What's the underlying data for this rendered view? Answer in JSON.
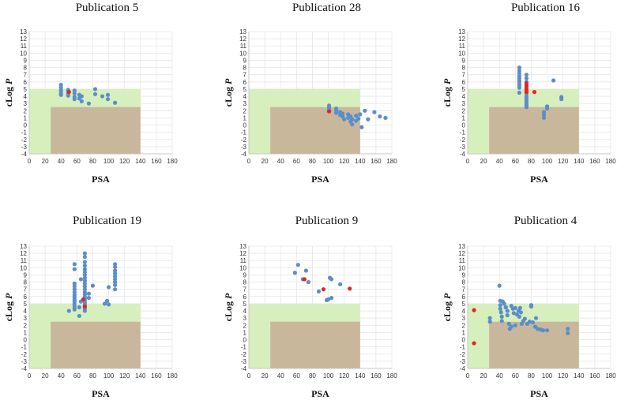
{
  "colors": {
    "green_region": "#d6efbd",
    "tan_region": "#c9b79b",
    "points": "#5b8ec9",
    "highlight": "#e8231f"
  },
  "chart_data": [
    {
      "type": "scatter",
      "title": "Publication 5",
      "xlabel": "PSA",
      "ylabel": "cLog P",
      "xlim": [
        0,
        180
      ],
      "ylim": [
        -4,
        13
      ],
      "x_ticks": [
        0,
        20,
        40,
        60,
        80,
        100,
        120,
        140,
        160,
        180
      ],
      "y_ticks": [
        -4,
        -3,
        -2,
        -1,
        0,
        1,
        2,
        3,
        4,
        5,
        6,
        7,
        8,
        9,
        10,
        11,
        12,
        13
      ],
      "regions": [
        {
          "name": "green",
          "x": [
            0,
            140
          ],
          "y": [
            -4,
            5
          ]
        },
        {
          "name": "tan",
          "x": [
            27,
            140
          ],
          "y": [
            -4,
            2.5
          ]
        }
      ],
      "series": [
        {
          "name": "compounds",
          "x": [
            40,
            40,
            40,
            40,
            40,
            49,
            49,
            49,
            49,
            57,
            57,
            57,
            57,
            63,
            63,
            66,
            66,
            75,
            83,
            83,
            92,
            99,
            99,
            108
          ],
          "y": [
            5.6,
            5.2,
            4.8,
            4.4,
            4.2,
            4.9,
            4.6,
            4.3,
            4.1,
            4.8,
            4.4,
            3.9,
            3.6,
            4.2,
            3.7,
            4.0,
            3.3,
            3.0,
            5.0,
            4.3,
            4.0,
            4.2,
            3.6,
            3.1
          ]
        },
        {
          "name": "highlight",
          "x": [
            50
          ],
          "y": [
            4.6
          ]
        }
      ]
    },
    {
      "type": "scatter",
      "title": "Publication 28",
      "xlabel": "PSA",
      "ylabel": "cLog P",
      "xlim": [
        0,
        180
      ],
      "ylim": [
        -4,
        13
      ],
      "x_ticks": [
        0,
        20,
        40,
        60,
        80,
        100,
        120,
        140,
        160,
        180
      ],
      "y_ticks": [
        -4,
        -3,
        -2,
        -1,
        0,
        1,
        2,
        3,
        4,
        5,
        6,
        7,
        8,
        9,
        10,
        11,
        12,
        13
      ],
      "regions": [
        {
          "name": "green",
          "x": [
            0,
            140
          ],
          "y": [
            -4,
            5
          ]
        },
        {
          "name": "tan",
          "x": [
            27,
            140
          ],
          "y": [
            -4,
            2.5
          ]
        }
      ],
      "series": [
        {
          "name": "compounds",
          "x": [
            101,
            101,
            101,
            110,
            110,
            110,
            115,
            115,
            118,
            118,
            120,
            125,
            125,
            128,
            128,
            130,
            130,
            135,
            135,
            138,
            140,
            142,
            146,
            150,
            158,
            165,
            172
          ],
          "y": [
            2.7,
            2.4,
            2.1,
            2.3,
            2.0,
            1.7,
            1.8,
            1.4,
            1.6,
            1.2,
            0.8,
            1.5,
            1.0,
            1.2,
            0.5,
            0.8,
            0.1,
            1.3,
            0.6,
            0.9,
            1.5,
            -0.3,
            2.0,
            0.8,
            1.8,
            1.2,
            1.0
          ]
        },
        {
          "name": "highlight",
          "x": [
            101
          ],
          "y": [
            1.9
          ]
        }
      ]
    },
    {
      "type": "scatter",
      "title": "Publication 16",
      "xlabel": "PSA",
      "ylabel": "cLog P",
      "xlim": [
        0,
        180
      ],
      "ylim": [
        -4,
        13
      ],
      "x_ticks": [
        0,
        20,
        40,
        60,
        80,
        100,
        120,
        140,
        160,
        180
      ],
      "y_ticks": [
        -4,
        -3,
        -2,
        -1,
        0,
        1,
        2,
        3,
        4,
        5,
        6,
        7,
        8,
        9,
        10,
        11,
        12,
        13
      ],
      "regions": [
        {
          "name": "green",
          "x": [
            0,
            140
          ],
          "y": [
            -4,
            5
          ]
        },
        {
          "name": "tan",
          "x": [
            27,
            140
          ],
          "y": [
            -4,
            2.5
          ]
        }
      ],
      "series": [
        {
          "name": "compounds",
          "x": [
            65,
            65,
            65,
            65,
            65,
            65,
            65,
            65,
            65,
            65,
            65,
            74,
            74,
            74,
            74,
            74,
            74,
            74,
            74,
            74,
            74,
            74,
            74,
            74,
            74,
            96,
            96,
            96,
            100,
            100,
            108,
            118,
            118
          ],
          "y": [
            8.0,
            7.6,
            7.2,
            6.8,
            6.5,
            6.2,
            6.0,
            5.7,
            5.5,
            5.2,
            4.5,
            7.0,
            6.5,
            6.0,
            5.6,
            5.2,
            4.8,
            4.4,
            4.0,
            3.7,
            3.4,
            3.1,
            2.9,
            2.7,
            2.5,
            1.8,
            1.4,
            1.0,
            2.3,
            2.6,
            6.2,
            3.9,
            3.6
          ]
        },
        {
          "name": "highlight",
          "x": [
            74,
            74,
            74,
            74,
            84
          ],
          "y": [
            5.8,
            5.4,
            5.0,
            4.6,
            4.6
          ]
        }
      ]
    },
    {
      "type": "scatter",
      "title": "Publication 19",
      "xlabel": "PSA",
      "ylabel": "cLog P",
      "xlim": [
        0,
        180
      ],
      "ylim": [
        -4,
        13
      ],
      "x_ticks": [
        0,
        20,
        40,
        60,
        80,
        100,
        120,
        140,
        160,
        180
      ],
      "y_ticks": [
        -4,
        -3,
        -2,
        -1,
        0,
        1,
        2,
        3,
        4,
        5,
        6,
        7,
        8,
        9,
        10,
        11,
        12,
        13
      ],
      "regions": [
        {
          "name": "green",
          "x": [
            0,
            140
          ],
          "y": [
            -4,
            5
          ]
        },
        {
          "name": "tan",
          "x": [
            27,
            140
          ],
          "y": [
            -4,
            2.5
          ]
        }
      ],
      "series": [
        {
          "name": "compounds",
          "x": [
            50,
            57,
            57,
            57,
            57,
            57,
            57,
            57,
            57,
            57,
            57,
            57,
            57,
            57,
            57,
            63,
            63,
            65,
            65,
            70,
            70,
            70,
            70,
            70,
            70,
            70,
            70,
            70,
            70,
            70,
            70,
            70,
            70,
            70,
            70,
            70,
            70,
            70,
            70,
            70,
            70,
            75,
            75,
            80,
            95,
            98,
            100,
            100,
            108,
            108,
            108,
            108,
            108,
            108,
            108,
            108,
            108
          ],
          "y": [
            4.0,
            10.5,
            9.8,
            7.8,
            7.4,
            7.0,
            6.6,
            6.2,
            5.9,
            5.6,
            5.3,
            5.0,
            4.7,
            4.4,
            4.2,
            3.3,
            4.5,
            8.4,
            5.3,
            12.0,
            11.5,
            10.8,
            10.3,
            9.8,
            9.4,
            9.0,
            8.6,
            8.2,
            7.8,
            7.4,
            7.0,
            6.6,
            6.3,
            6.0,
            5.7,
            5.4,
            5.1,
            4.8,
            4.6,
            4.3,
            4.0,
            5.8,
            6.4,
            7.5,
            5.0,
            5.4,
            7.3,
            4.9,
            10.5,
            10.1,
            9.6,
            9.2,
            8.8,
            8.4,
            8.0,
            7.6,
            7.0
          ]
        },
        {
          "name": "highlight",
          "x": [
            68,
            70
          ],
          "y": [
            5.6,
            4.6
          ]
        }
      ]
    },
    {
      "type": "scatter",
      "title": "Publication 9",
      "xlabel": "PSA",
      "ylabel": "cLog P",
      "xlim": [
        0,
        180
      ],
      "ylim": [
        -4,
        13
      ],
      "x_ticks": [
        0,
        20,
        40,
        60,
        80,
        100,
        120,
        140,
        160,
        180
      ],
      "y_ticks": [
        -4,
        -3,
        -2,
        -1,
        0,
        1,
        2,
        3,
        4,
        5,
        6,
        7,
        8,
        9,
        10,
        11,
        12,
        13
      ],
      "regions": [
        {
          "name": "green",
          "x": [
            0,
            140
          ],
          "y": [
            -4,
            5
          ]
        },
        {
          "name": "tan",
          "x": [
            27,
            140
          ],
          "y": [
            -4,
            2.5
          ]
        }
      ],
      "series": [
        {
          "name": "compounds",
          "x": [
            58,
            62,
            68,
            72,
            75,
            88,
            98,
            100,
            102,
            104,
            104,
            115
          ],
          "y": [
            9.3,
            10.4,
            8.4,
            9.6,
            8.0,
            6.7,
            5.5,
            5.6,
            8.6,
            5.8,
            8.4,
            7.7
          ]
        },
        {
          "name": "highlight",
          "x": [
            70,
            94,
            127
          ],
          "y": [
            8.4,
            7.0,
            7.1
          ]
        }
      ]
    },
    {
      "type": "scatter",
      "title": "Publication 4",
      "xlabel": "PSA",
      "ylabel": "cLog P",
      "xlim": [
        0,
        180
      ],
      "ylim": [
        -4,
        13
      ],
      "x_ticks": [
        0,
        20,
        40,
        60,
        80,
        100,
        120,
        140,
        160,
        180
      ],
      "y_ticks": [
        -4,
        -3,
        -2,
        -1,
        0,
        1,
        2,
        3,
        4,
        5,
        6,
        7,
        8,
        9,
        10,
        11,
        12,
        13
      ],
      "regions": [
        {
          "name": "green",
          "x": [
            0,
            140
          ],
          "y": [
            -4,
            5
          ]
        },
        {
          "name": "tan",
          "x": [
            27,
            140
          ],
          "y": [
            -4,
            2.5
          ]
        }
      ],
      "series": [
        {
          "name": "compounds",
          "x": [
            28,
            28,
            40,
            41,
            41,
            41,
            42,
            43,
            43,
            44,
            46,
            48,
            50,
            50,
            52,
            53,
            55,
            55,
            57,
            58,
            60,
            60,
            62,
            64,
            65,
            66,
            67,
            68,
            70,
            72,
            75,
            78,
            80,
            80,
            82,
            85,
            86,
            88,
            92,
            95,
            100,
            126,
            126
          ],
          "y": [
            3.0,
            2.5,
            7.5,
            5.4,
            4.8,
            4.3,
            3.8,
            3.2,
            2.6,
            5.3,
            5.0,
            4.5,
            4.0,
            3.4,
            2.2,
            1.5,
            4.7,
            1.8,
            4.3,
            3.7,
            4.4,
            2.0,
            3.5,
            4.0,
            3.2,
            4.4,
            3.8,
            2.2,
            2.6,
            2.9,
            2.2,
            2.5,
            4.8,
            4.6,
            2.4,
            1.8,
            3.0,
            1.5,
            1.4,
            1.3,
            1.3,
            1.5,
            0.9
          ]
        },
        {
          "name": "highlight",
          "x": [
            8,
            8
          ],
          "y": [
            4.1,
            -0.5
          ]
        }
      ]
    }
  ]
}
